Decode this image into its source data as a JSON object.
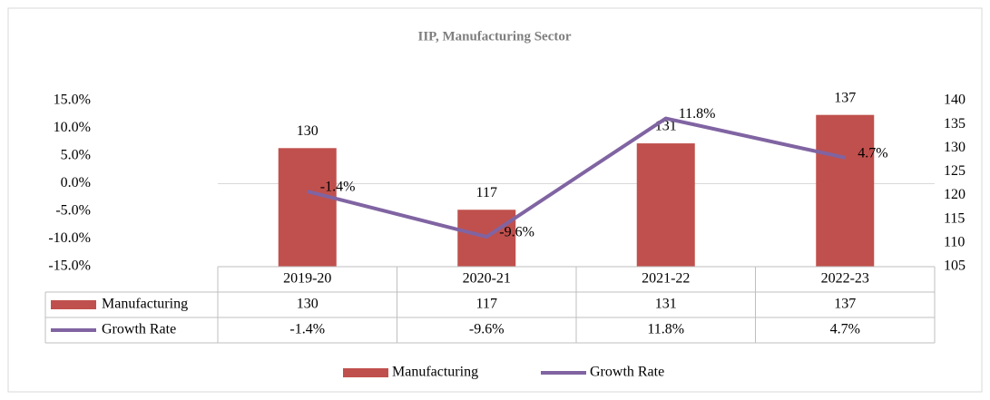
{
  "chart_data": {
    "type": "combo",
    "title": "IIP, Manufacturing Sector",
    "categories": [
      "2019-20",
      "2020-21",
      "2021-22",
      "2022-23"
    ],
    "series": [
      {
        "name": "Manufacturing",
        "type": "bar",
        "color": "#c0504d",
        "axis": "y2",
        "values": [
          130,
          117,
          131,
          137
        ]
      },
      {
        "name": "Growth Rate",
        "type": "line",
        "color": "#8064a2",
        "values": [
          -1.4,
          -9.6,
          11.8,
          4.7
        ],
        "value_labels": [
          "-1.4%",
          "-9.6%",
          "11.8%",
          "4.7%"
        ]
      }
    ],
    "ylim": [
      -15,
      15
    ],
    "yticks": [
      {
        "value": -15,
        "label": "-15.0%"
      },
      {
        "value": -10,
        "label": "-10.0%"
      },
      {
        "value": -5,
        "label": "-5.0%"
      },
      {
        "value": 0,
        "label": "0.0%"
      },
      {
        "value": 5,
        "label": "5.0%"
      },
      {
        "value": 10,
        "label": "10.0%"
      },
      {
        "value": 15,
        "label": "15.0%"
      }
    ],
    "y2lim": [
      105,
      140
    ],
    "y2ticks": [
      105,
      110,
      115,
      120,
      125,
      130,
      135,
      140
    ],
    "grid": false,
    "legend": "bottom"
  }
}
